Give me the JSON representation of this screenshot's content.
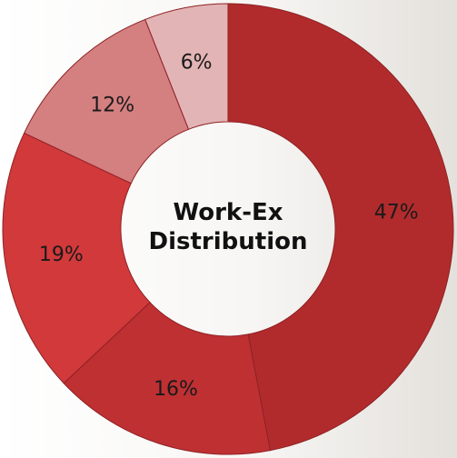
{
  "chart_data": {
    "type": "donut",
    "title": "Work-Ex Distribution",
    "values": [
      47,
      16,
      19,
      12,
      6
    ],
    "value_labels": [
      "47%",
      "16%",
      "19%",
      "12%",
      "6%"
    ],
    "colors": [
      "#b12b2d",
      "#bf3033",
      "#d1393b",
      "#d47f80",
      "#e3b4b5"
    ]
  }
}
